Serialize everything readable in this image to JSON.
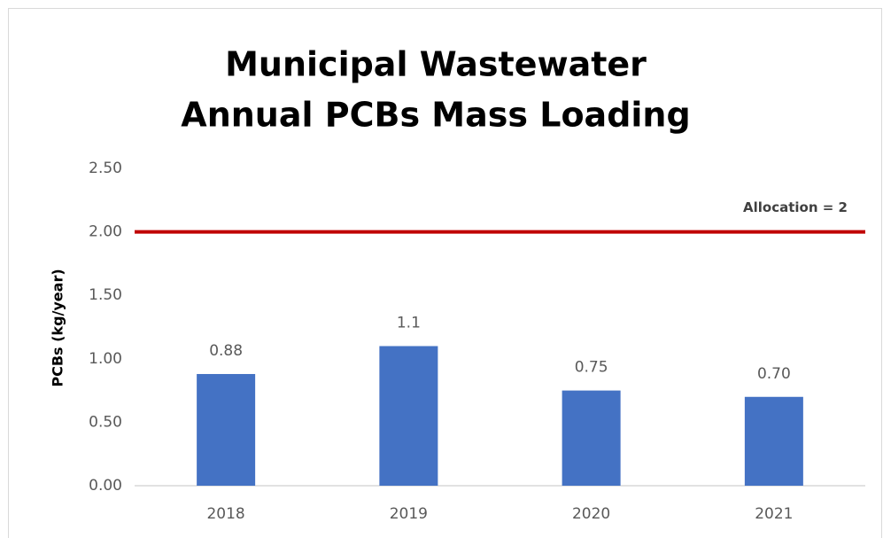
{
  "chart_data": {
    "type": "bar",
    "title": [
      "Municipal Wastewater",
      "Annual PCBs Mass Loading"
    ],
    "y_label": "PCBs (kg/year)",
    "categories": [
      "2018",
      "2019",
      "2020",
      "2021"
    ],
    "values": [
      0.88,
      1.1,
      0.75,
      0.7
    ],
    "value_labels": [
      "0.88",
      "1.1",
      "0.75",
      "0.70"
    ],
    "color": "#4472c4",
    "ylim": [
      0,
      2.5
    ],
    "yticks": [
      {
        "value": 0,
        "label": "0.00"
      },
      {
        "value": 0.5,
        "label": "0.50"
      },
      {
        "value": 1,
        "label": "1.00"
      },
      {
        "value": 1.5,
        "label": "1.50"
      },
      {
        "value": 2,
        "label": "2.00"
      },
      {
        "value": 2.5,
        "label": "2.50"
      }
    ],
    "grid": false,
    "reference_line": {
      "value": 2,
      "label": "Allocation = 2",
      "color": "#c00000"
    }
  }
}
